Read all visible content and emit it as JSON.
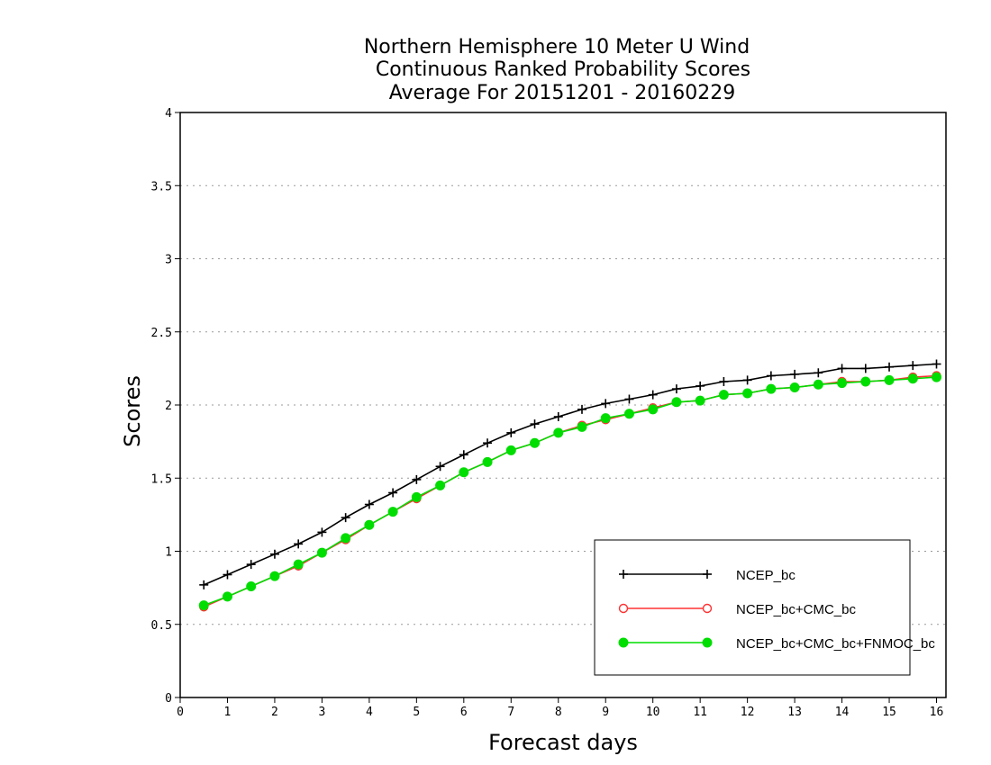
{
  "chart_data": {
    "type": "line",
    "title": [
      "Northern Hemisphere 10 Meter U Wind",
      "Continuous Ranked Probability Scores",
      "Average For 20151201 - 20160229"
    ],
    "xlabel": "Forecast days",
    "ylabel": "Scores",
    "xlim": [
      0,
      16.2
    ],
    "ylim": [
      0,
      4
    ],
    "xticks": [
      0,
      1,
      2,
      3,
      4,
      5,
      6,
      7,
      8,
      9,
      10,
      11,
      12,
      13,
      14,
      15,
      16
    ],
    "yticks": [
      0,
      0.5,
      1,
      1.5,
      2,
      2.5,
      3,
      3.5,
      4
    ],
    "ytick_labels": [
      "0",
      "0.5",
      "1",
      "1.5",
      "2",
      "2.5",
      "3",
      "3.5",
      "4"
    ],
    "grid": "horizontal-dotted",
    "legend_position": "bottom-right",
    "x": [
      0.5,
      1,
      1.5,
      2,
      2.5,
      3,
      3.5,
      4,
      4.5,
      5,
      5.5,
      6,
      6.5,
      7,
      7.5,
      8,
      8.5,
      9,
      9.5,
      10,
      10.5,
      11,
      11.5,
      12,
      12.5,
      13,
      13.5,
      14,
      14.5,
      15,
      15.5,
      16
    ],
    "series": [
      {
        "name": "NCEP_bc",
        "color": "#000000",
        "marker": "plus",
        "values": [
          0.77,
          0.84,
          0.91,
          0.98,
          1.05,
          1.13,
          1.23,
          1.32,
          1.4,
          1.49,
          1.58,
          1.66,
          1.74,
          1.81,
          1.87,
          1.92,
          1.97,
          2.01,
          2.04,
          2.07,
          2.11,
          2.13,
          2.16,
          2.17,
          2.2,
          2.21,
          2.22,
          2.25,
          2.25,
          2.26,
          2.27,
          2.28
        ]
      },
      {
        "name": "NCEP_bc+CMC_bc",
        "color": "#ff3030",
        "marker": "open-circle",
        "values": [
          0.62,
          0.69,
          0.76,
          0.83,
          0.9,
          0.99,
          1.08,
          1.18,
          1.27,
          1.36,
          1.45,
          1.54,
          1.61,
          1.69,
          1.74,
          1.81,
          1.86,
          1.9,
          1.94,
          1.98,
          2.02,
          2.03,
          2.07,
          2.08,
          2.11,
          2.12,
          2.14,
          2.16,
          2.16,
          2.17,
          2.19,
          2.2
        ]
      },
      {
        "name": "NCEP_bc+CMC_bc+FNMOC_bc",
        "color": "#00dd00",
        "marker": "filled-circle",
        "values": [
          0.63,
          0.69,
          0.76,
          0.83,
          0.91,
          0.99,
          1.09,
          1.18,
          1.27,
          1.37,
          1.45,
          1.54,
          1.61,
          1.69,
          1.74,
          1.81,
          1.85,
          1.91,
          1.94,
          1.97,
          2.02,
          2.03,
          2.07,
          2.08,
          2.11,
          2.12,
          2.14,
          2.15,
          2.16,
          2.17,
          2.18,
          2.19
        ]
      }
    ]
  }
}
